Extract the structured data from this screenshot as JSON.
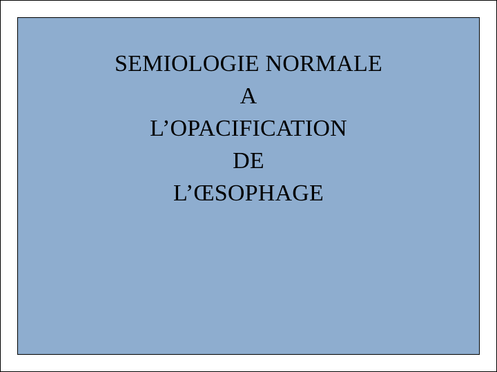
{
  "slide": {
    "background_color": "#ffffff",
    "box": {
      "background_color": "#8eadcf",
      "border_color": "#000000"
    },
    "text_color": "#000000",
    "lines": [
      "SEMIOLOGIE NORMALE",
      "A",
      "L’OPACIFICATION",
      "DE",
      "L’ŒSOPHAGE"
    ]
  }
}
